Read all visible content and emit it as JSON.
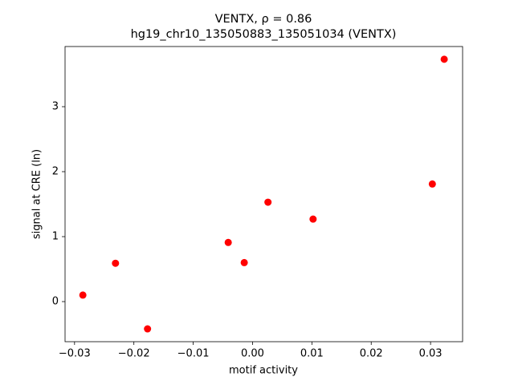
{
  "chart_data": {
    "type": "scatter",
    "title": "VENTX, ρ = 0.86",
    "subtitle": "hg19_chr10_135050883_135051034 (VENTX)",
    "x_label": "motif activity",
    "y_label": "signal at CRE (ln)",
    "series": [
      {
        "color": "#ff0000",
        "x": [
          -0.0286,
          -0.0231,
          -0.0177,
          -0.0041,
          -0.0014,
          0.0026,
          0.0102,
          0.0303,
          0.0323
        ],
        "values": [
          0.1,
          0.59,
          -0.42,
          0.91,
          0.6,
          1.53,
          1.27,
          1.81,
          3.73
        ]
      }
    ],
    "xlim": [
      -0.0316,
      0.0354
    ],
    "ylim": [
      -0.617,
      3.926
    ],
    "xticks": [
      {
        "value": -0.03,
        "label": "−0.03"
      },
      {
        "value": -0.02,
        "label": "−0.02"
      },
      {
        "value": -0.01,
        "label": "−0.01"
      },
      {
        "value": 0,
        "label": "0.00"
      },
      0.01,
      0.02,
      0.03
    ],
    "yticks": [
      0,
      1,
      2,
      3
    ]
  }
}
